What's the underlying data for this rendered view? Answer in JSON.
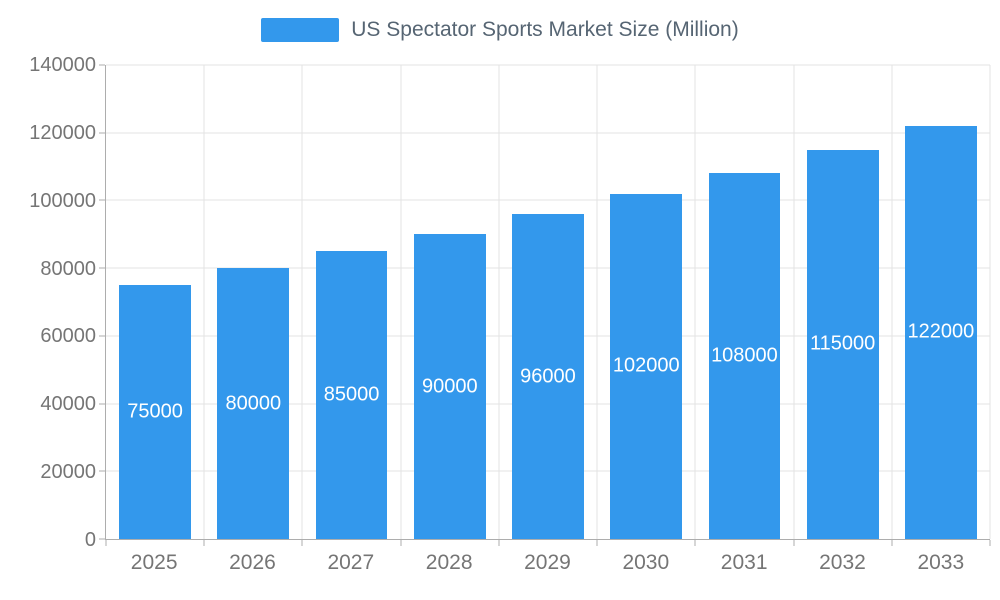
{
  "chart_data": {
    "type": "bar",
    "title": "US Spectator Sports Market Size (Million)",
    "categories": [
      "2025",
      "2026",
      "2027",
      "2028",
      "2029",
      "2030",
      "2031",
      "2032",
      "2033"
    ],
    "values": [
      75000,
      80000,
      85000,
      90000,
      96000,
      102000,
      108000,
      115000,
      122000
    ],
    "value_labels": [
      "75000",
      "80000",
      "85000",
      "90000",
      "96000",
      "102000",
      "108000",
      "115000",
      "122000"
    ],
    "xlabel": "",
    "ylabel": "",
    "ylim": [
      0,
      140000
    ],
    "ytick_step": 20000,
    "ytick_labels": [
      "0",
      "20000",
      "40000",
      "60000",
      "80000",
      "100000",
      "120000",
      "140000"
    ],
    "grid": true,
    "legend_position": "top-center",
    "data_label_position": "inside-center",
    "colors": {
      "bar": "#3398EC",
      "grid": "#E3E3E3",
      "axis": "#ADADAD",
      "tick_label": "#757575",
      "title": "#566573",
      "data_label": "#FFFFFF",
      "background": "#FFFFFF"
    }
  }
}
